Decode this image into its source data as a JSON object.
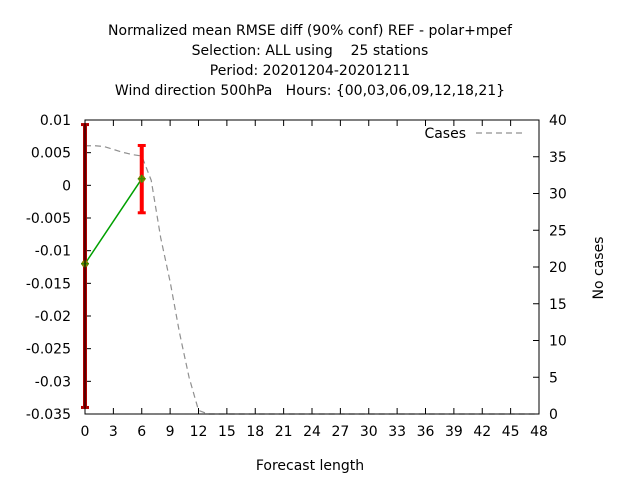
{
  "chart_data": {
    "type": "line",
    "title_lines": [
      "Normalized mean RMSE diff (90% conf) REF - polar+mpef",
      "Selection: ALL using    25 stations",
      "Period: 20201204-20201211",
      "Wind direction 500hPa   Hours: {00,03,06,09,12,18,21}"
    ],
    "xlabel": "Forecast length",
    "ylabel_left": "",
    "ylabel_right": "No cases",
    "xlim": [
      0,
      48
    ],
    "ylim_left": [
      -0.035,
      0.01
    ],
    "ylim_right": [
      0,
      40
    ],
    "x_ticks": [
      0,
      3,
      6,
      9,
      12,
      15,
      18,
      21,
      24,
      27,
      30,
      33,
      36,
      39,
      42,
      45,
      48
    ],
    "y_left_ticks": [
      0.01,
      0.005,
      0,
      -0.005,
      -0.01,
      -0.015,
      -0.02,
      -0.025,
      -0.03,
      -0.035
    ],
    "y_left_tick_labels": [
      "0.01",
      "0.005",
      "0",
      "-0.005",
      "-0.01",
      "-0.015",
      "-0.02",
      "-0.025",
      "-0.03",
      "-0.035"
    ],
    "y_right_ticks": [
      40,
      35,
      30,
      25,
      20,
      15,
      10,
      5,
      0
    ],
    "legend": {
      "label": "Cases",
      "placement": "top-right"
    },
    "diff_series": {
      "color": "#00a000",
      "x": [
        0,
        6
      ],
      "y": [
        -0.012,
        0.001
      ]
    },
    "error_bars": [
      {
        "x": 0,
        "low": -0.034,
        "high": 0.0093,
        "color": "#b00000"
      },
      {
        "x": 6,
        "low": -0.0042,
        "high": 0.0061,
        "color": "#ff0000"
      }
    ],
    "cases_series": {
      "name": "Cases",
      "color": "#909090",
      "x": [
        0,
        1,
        2,
        3,
        4,
        5,
        6,
        7,
        8,
        9,
        10,
        11,
        12,
        13,
        48
      ],
      "y": [
        36.5,
        36.5,
        36.4,
        36.0,
        35.6,
        35.3,
        35.1,
        31.8,
        24.0,
        18.0,
        11.0,
        5.0,
        0.5,
        0,
        0
      ]
    }
  }
}
